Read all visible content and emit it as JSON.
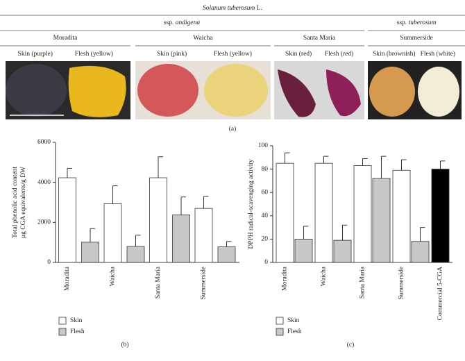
{
  "figure": {
    "title": {
      "species": "Solanum tuberosum",
      "authority": "L."
    },
    "subspecies": [
      {
        "prefix": "ssp.",
        "name": "andigena"
      },
      {
        "prefix": "ssp.",
        "name": "tuberosum"
      }
    ],
    "varieties": [
      {
        "name": "Moradita",
        "labels": [
          "Skin (purple)",
          "Flesh (yellow)"
        ]
      },
      {
        "name": "Waicha",
        "labels": [
          "Skin (pink)",
          "Flesh (yellow)"
        ]
      },
      {
        "name": "Santa María",
        "labels": [
          "Skin (red)",
          "Flesh (red)"
        ]
      },
      {
        "name": "Summerside",
        "labels": [
          "Skin (brownish)",
          "Flesh (white)"
        ]
      }
    ],
    "caption": "(a)"
  },
  "chart_data": [
    {
      "type": "bar",
      "caption": "(b)",
      "ylabel": [
        "Total phenolic acid content",
        "μg CGA equivalents/g DW"
      ],
      "categories": [
        "Moradita",
        "Waicha",
        "Santa María",
        "Summerside"
      ],
      "series": [
        {
          "name": "Skin",
          "color": "#ffffff",
          "values": [
            4230,
            2930,
            4230,
            2700
          ],
          "errors": [
            470,
            900,
            1050,
            600
          ]
        },
        {
          "name": "Flesh",
          "color": "#c8c8c8",
          "values": [
            1010,
            800,
            2370,
            780
          ],
          "errors": [
            680,
            560,
            900,
            270
          ]
        }
      ],
      "ylim": [
        0,
        6000
      ],
      "yticks": [
        0,
        2000,
        4000,
        6000
      ],
      "legend": "bottom-left"
    },
    {
      "type": "bar",
      "caption": "(c)",
      "ylabel": [
        "DPPH radical-scavenging activity"
      ],
      "categories": [
        "Moradita",
        "Waicha",
        "Santa María",
        "Summerside",
        "Commercial 5-CGA"
      ],
      "series": [
        {
          "name": "Skin",
          "color": "#ffffff",
          "colors": [
            "#ffffff",
            "#ffffff",
            "#ffffff",
            "#ffffff",
            "#000000"
          ],
          "values": [
            85,
            85,
            83,
            79,
            80
          ],
          "errors": [
            9,
            6,
            6,
            9,
            7
          ]
        },
        {
          "name": "Flesh",
          "color": "#c8c8c8",
          "values": [
            20,
            19,
            72,
            18,
            null
          ],
          "errors": [
            11,
            13,
            19,
            12,
            null
          ]
        }
      ],
      "ylim": [
        0,
        100
      ],
      "yticks": [
        0,
        20,
        40,
        60,
        80,
        100
      ],
      "legend": "bottom-left"
    }
  ]
}
